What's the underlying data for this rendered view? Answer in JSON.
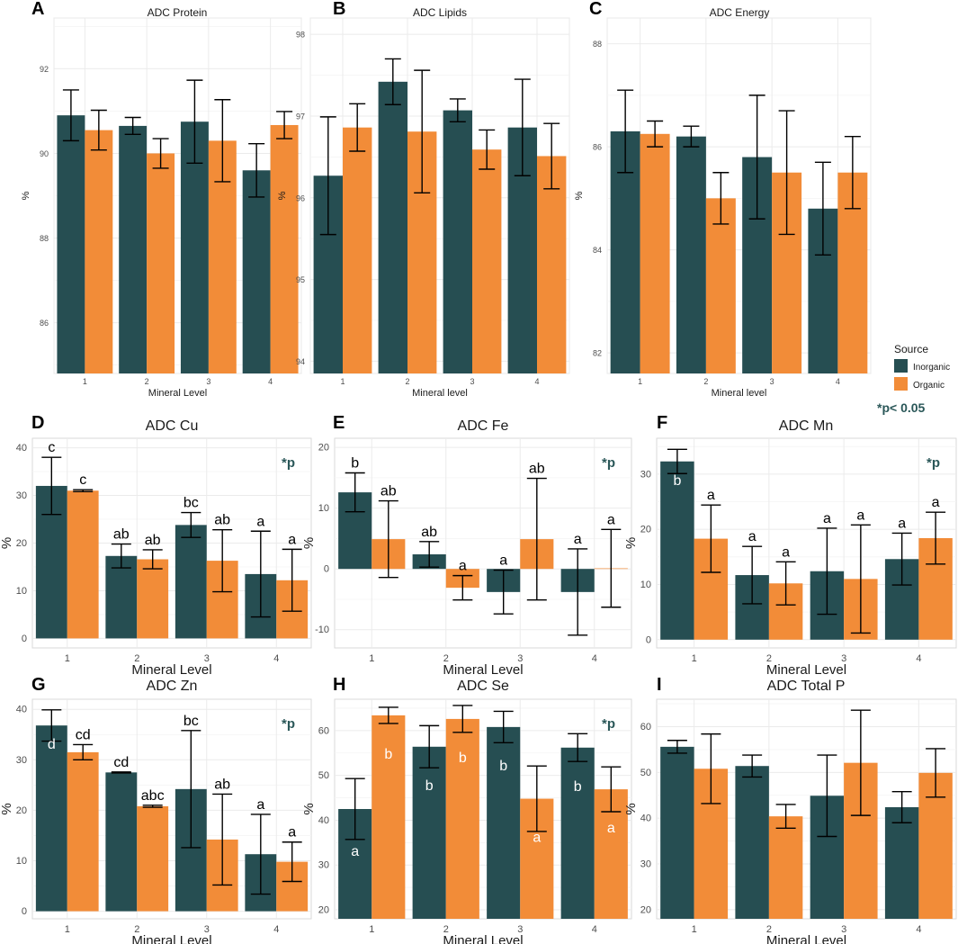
{
  "colors": {
    "inorganic": "#264e52",
    "organic": "#f28c38",
    "grid": "#ebebeb",
    "sig": "#2a5758"
  },
  "legend": {
    "title": "Source",
    "items": [
      "Inorganic",
      "Organic"
    ],
    "note": "*p< 0.05"
  },
  "chart_data": [
    {
      "id": "A",
      "letter": "A",
      "type": "bar",
      "title": "ADC Protein",
      "xlabel": "Mineral Level",
      "ylabel": "%",
      "categories": [
        "1",
        "2",
        "3",
        "4"
      ],
      "ylim": [
        84.8,
        93.2
      ],
      "yticks": [
        86,
        88,
        90,
        92
      ],
      "series": [
        {
          "name": "Inorganic",
          "values": [
            90.9,
            90.65,
            90.75,
            89.6
          ],
          "errors": [
            0.6,
            0.2,
            0.98,
            0.63
          ]
        },
        {
          "name": "Organic",
          "values": [
            90.55,
            90.0,
            90.3,
            90.67
          ],
          "errors": [
            0.47,
            0.35,
            0.97,
            0.32
          ]
        }
      ]
    },
    {
      "id": "B",
      "letter": "B",
      "type": "bar",
      "title": "ADC Lipids",
      "xlabel": "Mineral level",
      "ylabel": "%",
      "categories": [
        "1",
        "2",
        "3",
        "4"
      ],
      "ylim": [
        93.85,
        98.2
      ],
      "yticks": [
        94,
        95,
        96,
        97,
        98
      ],
      "series": [
        {
          "name": "Inorganic",
          "values": [
            96.27,
            97.42,
            97.07,
            96.86
          ],
          "errors": [
            0.72,
            0.28,
            0.14,
            0.59
          ]
        },
        {
          "name": "Organic",
          "values": [
            96.86,
            96.81,
            96.59,
            96.51
          ],
          "errors": [
            0.29,
            0.75,
            0.24,
            0.4
          ]
        }
      ]
    },
    {
      "id": "C",
      "letter": "C",
      "type": "bar",
      "title": "ADC Energy",
      "xlabel": "Mineral level",
      "ylabel": "%",
      "categories": [
        "1",
        "2",
        "3",
        "4"
      ],
      "ylim": [
        81.6,
        88.5
      ],
      "yticks": [
        82,
        84,
        86,
        88
      ],
      "series": [
        {
          "name": "Inorganic",
          "values": [
            86.3,
            86.2,
            85.8,
            84.8
          ],
          "errors": [
            0.8,
            0.2,
            1.2,
            0.9
          ]
        },
        {
          "name": "Organic",
          "values": [
            86.25,
            85.0,
            85.5,
            85.5
          ],
          "errors": [
            0.25,
            0.5,
            1.2,
            0.7
          ]
        }
      ]
    },
    {
      "id": "D",
      "letter": "D",
      "type": "bar",
      "title": "ADC Cu",
      "xlabel": "Mineral Level",
      "ylabel": "%",
      "sig": "*p",
      "categories": [
        "1",
        "2",
        "3",
        "4"
      ],
      "ylim": [
        -2,
        42
      ],
      "yticks": [
        0,
        10,
        20,
        30,
        40
      ],
      "series": [
        {
          "name": "Inorganic",
          "values": [
            32.0,
            17.3,
            23.8,
            13.5
          ],
          "errors": [
            6.0,
            2.5,
            2.6,
            9.0
          ],
          "labels": [
            "c",
            "ab",
            "bc",
            "a"
          ],
          "label_pos": [
            "above",
            "above",
            "above",
            "above"
          ]
        },
        {
          "name": "Organic",
          "values": [
            31.0,
            16.6,
            16.3,
            12.2
          ],
          "errors": [
            0.2,
            2.0,
            6.5,
            6.5
          ],
          "labels": [
            "c",
            "ab",
            "ab",
            "a"
          ],
          "label_pos": [
            "above",
            "above",
            "above",
            "above"
          ]
        }
      ]
    },
    {
      "id": "E",
      "letter": "E",
      "type": "bar",
      "title": "ADC Fe",
      "xlabel": "Mineral Level",
      "ylabel": "%",
      "sig": "*p",
      "categories": [
        "1",
        "2",
        "3",
        "4"
      ],
      "ylim": [
        -13,
        21.5
      ],
      "yticks": [
        -10,
        0,
        10,
        20
      ],
      "series": [
        {
          "name": "Inorganic",
          "values": [
            12.6,
            2.4,
            -3.8,
            -3.8
          ],
          "errors": [
            3.2,
            2.1,
            3.6,
            7.1
          ],
          "labels": [
            "b",
            "ab",
            "a",
            "a"
          ],
          "label_pos": [
            "above",
            "above",
            "above",
            "above"
          ]
        },
        {
          "name": "Organic",
          "values": [
            4.9,
            -3.1,
            4.9,
            0.1
          ],
          "errors": [
            6.3,
            2.0,
            10.0,
            6.4
          ],
          "labels": [
            "ab",
            "a",
            "ab",
            "a"
          ],
          "label_pos": [
            "above",
            "above",
            "above",
            "above"
          ]
        }
      ]
    },
    {
      "id": "F",
      "letter": "F",
      "type": "bar",
      "title": "ADC Mn",
      "xlabel": "Mineral Level",
      "ylabel": "%",
      "sig": "*p",
      "categories": [
        "1",
        "2",
        "3",
        "4"
      ],
      "ylim": [
        -1.5,
        36.5
      ],
      "yticks": [
        0,
        10,
        20,
        30
      ],
      "series": [
        {
          "name": "Inorganic",
          "values": [
            32.3,
            11.7,
            12.4,
            14.6
          ],
          "errors": [
            2.2,
            5.2,
            7.8,
            4.7
          ],
          "labels": [
            "b",
            "a",
            "a",
            "a"
          ],
          "label_pos": [
            "inside",
            "above",
            "above",
            "above"
          ]
        },
        {
          "name": "Organic",
          "values": [
            18.3,
            10.2,
            11.0,
            18.4
          ],
          "errors": [
            6.1,
            3.9,
            9.8,
            4.7
          ],
          "labels": [
            "a",
            "a",
            "a",
            "a"
          ],
          "label_pos": [
            "above",
            "above",
            "above",
            "above"
          ]
        }
      ]
    },
    {
      "id": "G",
      "letter": "G",
      "type": "bar",
      "title": "ADC Zn",
      "xlabel": "Mineral Level",
      "ylabel": "%",
      "sig": "*p",
      "categories": [
        "1",
        "2",
        "3",
        "4"
      ],
      "ylim": [
        -1.5,
        42
      ],
      "yticks": [
        0,
        10,
        20,
        30,
        40
      ],
      "series": [
        {
          "name": "Inorganic",
          "values": [
            36.8,
            27.5,
            24.2,
            11.3
          ],
          "errors": [
            3.1,
            0.1,
            11.6,
            7.9
          ],
          "labels": [
            "d",
            "cd",
            "bc",
            "a"
          ],
          "label_pos": [
            "inside",
            "above",
            "above",
            "above"
          ]
        },
        {
          "name": "Organic",
          "values": [
            31.5,
            20.8,
            14.2,
            9.8
          ],
          "errors": [
            1.5,
            0.2,
            9.0,
            3.9
          ],
          "labels": [
            "cd",
            "abc",
            "ab",
            "a"
          ],
          "label_pos": [
            "above",
            "above",
            "above",
            "above"
          ]
        }
      ]
    },
    {
      "id": "H",
      "letter": "H",
      "type": "bar",
      "title": "ADC Se",
      "xlabel": "Mineral Level",
      "ylabel": "%",
      "sig": "*p",
      "categories": [
        "1",
        "2",
        "3",
        "4"
      ],
      "ylim": [
        18,
        67
      ],
      "yticks": [
        20,
        30,
        40,
        50,
        60
      ],
      "series": [
        {
          "name": "Inorganic",
          "values": [
            42.5,
            56.4,
            60.8,
            56.2
          ],
          "errors": [
            6.8,
            4.7,
            3.5,
            3.1
          ],
          "labels": [
            "a",
            "b",
            "b",
            "b"
          ],
          "label_pos": [
            "inside",
            "inside",
            "inside",
            "inside"
          ]
        },
        {
          "name": "Organic",
          "values": [
            63.4,
            62.6,
            44.8,
            46.9
          ],
          "errors": [
            1.8,
            3.0,
            7.3,
            5.0
          ],
          "labels": [
            "b",
            "b",
            "a",
            "a"
          ],
          "label_pos": [
            "inside",
            "inside",
            "inside",
            "inside"
          ]
        }
      ]
    },
    {
      "id": "I",
      "letter": "I",
      "type": "bar",
      "title": "ADC Total P",
      "xlabel": "Mineral Level",
      "ylabel": "%",
      "categories": [
        "1",
        "2",
        "3",
        "4"
      ],
      "ylim": [
        18,
        66
      ],
      "yticks": [
        20,
        30,
        40,
        50,
        60
      ],
      "series": [
        {
          "name": "Inorganic",
          "values": [
            55.6,
            51.4,
            44.9,
            42.4
          ],
          "errors": [
            1.4,
            2.4,
            8.9,
            3.4
          ],
          "labels": [],
          "label_pos": []
        },
        {
          "name": "Organic",
          "values": [
            50.8,
            40.4,
            52.1,
            49.9
          ],
          "errors": [
            7.6,
            2.6,
            11.5,
            5.3
          ],
          "labels": [],
          "label_pos": []
        }
      ]
    }
  ]
}
